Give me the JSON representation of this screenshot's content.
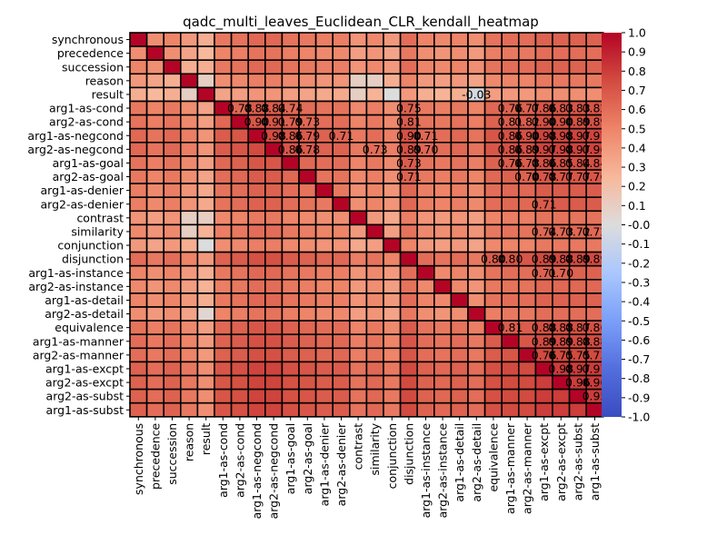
{
  "chart_data": {
    "type": "heatmap",
    "title": "qadc_multi_leaves_Euclidean_CLR_kendall_heatmap",
    "row_labels": [
      "synchronous",
      "precedence",
      "succession",
      "reason",
      "result",
      "arg1-as-cond",
      "arg2-as-cond",
      "arg1-as-negcond",
      "arg2-as-negcond",
      "arg1-as-goal",
      "arg2-as-goal",
      "arg1-as-denier",
      "arg2-as-denier",
      "contrast",
      "similarity",
      "conjunction",
      "disjunction",
      "arg1-as-instance",
      "arg2-as-instance",
      "arg1-as-detail",
      "arg2-as-detail",
      "equivalence",
      "arg1-as-manner",
      "arg2-as-manner",
      "arg1-as-excpt",
      "arg2-as-excpt",
      "arg2-as-subst",
      "arg1-as-subst"
    ],
    "col_labels": [
      "synchronous",
      "precedence",
      "succession",
      "reason",
      "result",
      "arg1-as-cond",
      "arg2-as-cond",
      "arg1-as-negcond",
      "arg2-as-negcond",
      "arg1-as-goal",
      "arg2-as-goal",
      "arg1-as-denier",
      "arg2-as-denier",
      "contrast",
      "similarity",
      "conjunction",
      "disjunction",
      "arg1-as-instance",
      "arg2-as-instance",
      "arg1-as-detail",
      "arg2-as-detail",
      "equivalence",
      "arg1-as-manner",
      "arg2-as-manner",
      "arg1-as-excpt",
      "arg2-as-excpt",
      "arg2-as-subst",
      "arg1-as-subst"
    ],
    "base_values": [
      0.5,
      0.4,
      0.5,
      0.3,
      0.1,
      0.6,
      0.65,
      0.75,
      0.75,
      0.65,
      0.6,
      0.55,
      0.55,
      0.35,
      0.45,
      0.3,
      0.7,
      0.5,
      0.45,
      0.5,
      0.4,
      0.65,
      0.7,
      0.7,
      0.8,
      0.8,
      0.8,
      0.8
    ],
    "cell_overrides": [
      [
        4,
        3,
        0.1
      ],
      [
        4,
        4,
        0.1
      ],
      [
        4,
        15,
        0.0
      ],
      [
        4,
        20,
        -0.03
      ],
      [
        4,
        13,
        0.1
      ],
      [
        3,
        2,
        0.3
      ],
      [
        14,
        3,
        0.1
      ],
      [
        15,
        4,
        0.0
      ],
      [
        20,
        4,
        0.05
      ],
      [
        13,
        3,
        0.1
      ]
    ],
    "annotations": [
      {
        "row": 4,
        "col": 20,
        "text": "-0.03"
      },
      {
        "row": 5,
        "col": 6,
        "text": "0.78"
      },
      {
        "row": 5,
        "col": 7,
        "text": "0.88"
      },
      {
        "row": 5,
        "col": 8,
        "text": "0.84"
      },
      {
        "row": 5,
        "col": 9,
        "text": "0.74"
      },
      {
        "row": 5,
        "col": 16,
        "text": "0.75"
      },
      {
        "row": 5,
        "col": 22,
        "text": "0.76"
      },
      {
        "row": 5,
        "col": 23,
        "text": "0.77"
      },
      {
        "row": 5,
        "col": 24,
        "text": "0.86"
      },
      {
        "row": 5,
        "col": 25,
        "text": "0.83"
      },
      {
        "row": 5,
        "col": 26,
        "text": "0.83"
      },
      {
        "row": 5,
        "col": 27,
        "text": "0.82"
      },
      {
        "row": 6,
        "col": 7,
        "text": "0.90"
      },
      {
        "row": 6,
        "col": 8,
        "text": "0.91"
      },
      {
        "row": 6,
        "col": 9,
        "text": "0.79"
      },
      {
        "row": 6,
        "col": 10,
        "text": "0.73"
      },
      {
        "row": 6,
        "col": 16,
        "text": "0.81"
      },
      {
        "row": 6,
        "col": 22,
        "text": "0.81"
      },
      {
        "row": 6,
        "col": 23,
        "text": "0.82"
      },
      {
        "row": 6,
        "col": 24,
        "text": "0.90"
      },
      {
        "row": 6,
        "col": 25,
        "text": "0.90"
      },
      {
        "row": 6,
        "col": 26,
        "text": "0.89"
      },
      {
        "row": 6,
        "col": 27,
        "text": "0.89"
      },
      {
        "row": 7,
        "col": 8,
        "text": "0.98"
      },
      {
        "row": 7,
        "col": 9,
        "text": "0.86"
      },
      {
        "row": 7,
        "col": 10,
        "text": "0.79"
      },
      {
        "row": 7,
        "col": 12,
        "text": "0.71"
      },
      {
        "row": 7,
        "col": 16,
        "text": "0.90"
      },
      {
        "row": 7,
        "col": 17,
        "text": "0.71"
      },
      {
        "row": 7,
        "col": 22,
        "text": "0.86"
      },
      {
        "row": 7,
        "col": 23,
        "text": "0.90"
      },
      {
        "row": 7,
        "col": 24,
        "text": "0.98"
      },
      {
        "row": 7,
        "col": 25,
        "text": "0.98"
      },
      {
        "row": 7,
        "col": 26,
        "text": "0.97"
      },
      {
        "row": 7,
        "col": 27,
        "text": "0.97"
      },
      {
        "row": 8,
        "col": 9,
        "text": "0.86"
      },
      {
        "row": 8,
        "col": 10,
        "text": "0.78"
      },
      {
        "row": 8,
        "col": 14,
        "text": "0.73"
      },
      {
        "row": 8,
        "col": 16,
        "text": "0.89"
      },
      {
        "row": 8,
        "col": 17,
        "text": "0.70"
      },
      {
        "row": 8,
        "col": 22,
        "text": "0.86"
      },
      {
        "row": 8,
        "col": 23,
        "text": "0.89"
      },
      {
        "row": 8,
        "col": 24,
        "text": "0.97"
      },
      {
        "row": 8,
        "col": 25,
        "text": "0.98"
      },
      {
        "row": 8,
        "col": 26,
        "text": "0.97"
      },
      {
        "row": 8,
        "col": 27,
        "text": "0.96"
      },
      {
        "row": 9,
        "col": 16,
        "text": "0.73"
      },
      {
        "row": 9,
        "col": 22,
        "text": "0.76"
      },
      {
        "row": 9,
        "col": 23,
        "text": "0.78"
      },
      {
        "row": 9,
        "col": 24,
        "text": "0.86"
      },
      {
        "row": 9,
        "col": 25,
        "text": "0.85"
      },
      {
        "row": 9,
        "col": 26,
        "text": "0.84"
      },
      {
        "row": 9,
        "col": 27,
        "text": "0.84"
      },
      {
        "row": 10,
        "col": 16,
        "text": "0.71"
      },
      {
        "row": 10,
        "col": 23,
        "text": "0.70"
      },
      {
        "row": 10,
        "col": 24,
        "text": "0.78"
      },
      {
        "row": 10,
        "col": 25,
        "text": "0.77"
      },
      {
        "row": 10,
        "col": 26,
        "text": "0.77"
      },
      {
        "row": 10,
        "col": 27,
        "text": "0.76"
      },
      {
        "row": 12,
        "col": 24,
        "text": "0.71"
      },
      {
        "row": 14,
        "col": 24,
        "text": "0.74"
      },
      {
        "row": 14,
        "col": 25,
        "text": "0.73"
      },
      {
        "row": 14,
        "col": 26,
        "text": "0.72"
      },
      {
        "row": 14,
        "col": 27,
        "text": "0.72"
      },
      {
        "row": 16,
        "col": 21,
        "text": "0.80"
      },
      {
        "row": 16,
        "col": 22,
        "text": "0.80"
      },
      {
        "row": 16,
        "col": 24,
        "text": "0.89"
      },
      {
        "row": 16,
        "col": 25,
        "text": "0.88"
      },
      {
        "row": 16,
        "col": 26,
        "text": "0.89"
      },
      {
        "row": 16,
        "col": 27,
        "text": "0.89"
      },
      {
        "row": 17,
        "col": 24,
        "text": "0.71"
      },
      {
        "row": 17,
        "col": 25,
        "text": "0.70"
      },
      {
        "row": 21,
        "col": 22,
        "text": "0.81"
      },
      {
        "row": 21,
        "col": 24,
        "text": "0.88"
      },
      {
        "row": 21,
        "col": 25,
        "text": "0.88"
      },
      {
        "row": 21,
        "col": 26,
        "text": "0.87"
      },
      {
        "row": 21,
        "col": 27,
        "text": "0.86"
      },
      {
        "row": 22,
        "col": 24,
        "text": "0.89"
      },
      {
        "row": 22,
        "col": 25,
        "text": "0.89"
      },
      {
        "row": 22,
        "col": 26,
        "text": "0.88"
      },
      {
        "row": 22,
        "col": 27,
        "text": "0.88"
      },
      {
        "row": 23,
        "col": 24,
        "text": "0.76"
      },
      {
        "row": 23,
        "col": 25,
        "text": "0.75"
      },
      {
        "row": 23,
        "col": 26,
        "text": "0.75"
      },
      {
        "row": 23,
        "col": 27,
        "text": "0.73"
      },
      {
        "row": 24,
        "col": 25,
        "text": "0.98"
      },
      {
        "row": 24,
        "col": 26,
        "text": "0.97"
      },
      {
        "row": 24,
        "col": 27,
        "text": "0.97"
      },
      {
        "row": 25,
        "col": 26,
        "text": "0.96"
      },
      {
        "row": 25,
        "col": 27,
        "text": "0.96"
      },
      {
        "row": 26,
        "col": 27,
        "text": "0.95"
      }
    ],
    "colormap": "coolwarm",
    "vmin": -1.0,
    "vmax": 1.0,
    "colorbar_ticks": [
      "1.0",
      "0.9",
      "0.8",
      "0.7",
      "0.6",
      "0.5",
      "0.4",
      "0.3",
      "0.2",
      "0.1",
      "-0.0",
      "-0.1",
      "-0.2",
      "-0.3",
      "-0.4",
      "-0.5",
      "-0.6",
      "-0.7",
      "-0.8",
      "-0.9",
      "-1.0"
    ],
    "grid": true
  }
}
